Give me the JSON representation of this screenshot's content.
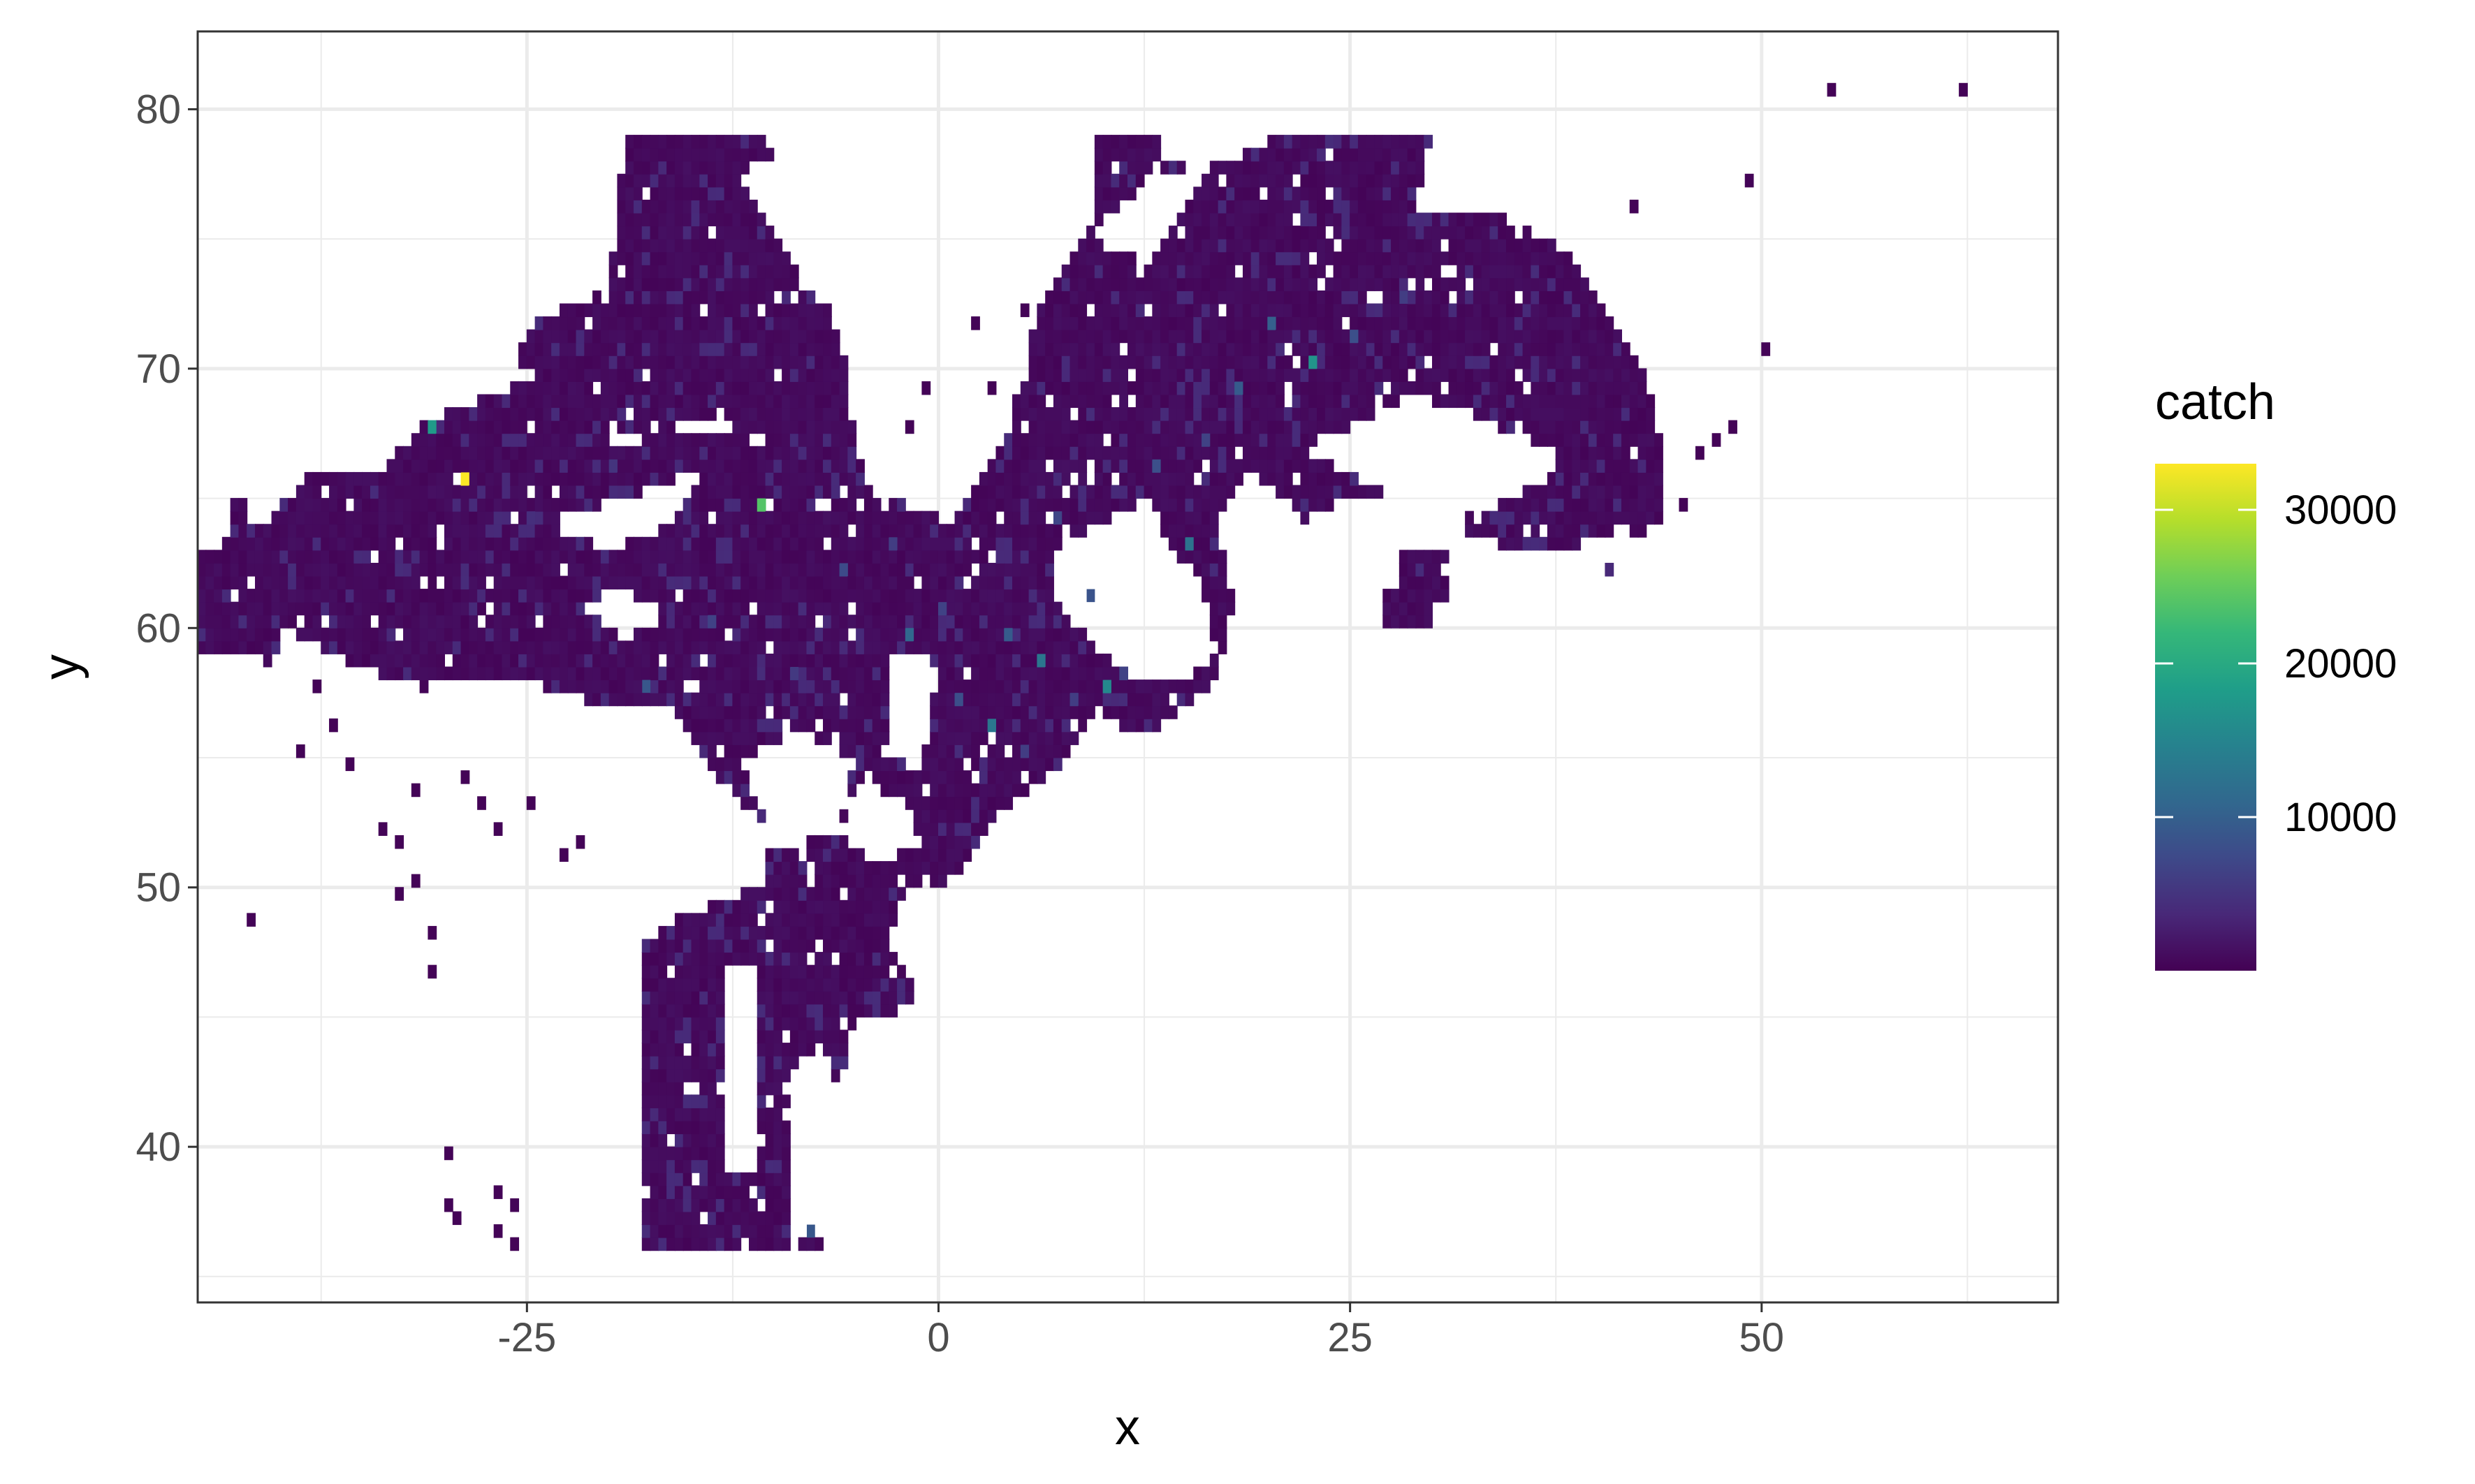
{
  "chart_data": {
    "type": "heatmap",
    "title": "",
    "xlabel": "x",
    "ylabel": "y",
    "xlim": [
      -45,
      68
    ],
    "ylim": [
      34,
      83
    ],
    "x_ticks": [
      -25,
      0,
      25,
      50
    ],
    "x_tick_labels": [
      "-25",
      "0",
      "25",
      "50"
    ],
    "x_minor": [
      -37.5,
      -12.5,
      12.5,
      37.5,
      62.5
    ],
    "y_ticks": [
      40,
      50,
      60,
      70,
      80
    ],
    "y_tick_labels": [
      "40",
      "50",
      "60",
      "70",
      "80"
    ],
    "y_minor": [
      35,
      45,
      55,
      65,
      75
    ],
    "grid": true,
    "cell_size": 0.5,
    "background_value": 300,
    "colorscale": "viridis",
    "colorscale_stops": [
      "#440154",
      "#482878",
      "#3e4989",
      "#31688e",
      "#26828e",
      "#1f9e89",
      "#35b779",
      "#6ece58",
      "#b5de2b",
      "#fde725"
    ],
    "value_range": [
      0,
      33000
    ],
    "region_polygons": [
      [
        [
          -44,
          59
        ],
        [
          -44,
          63
        ],
        [
          -41,
          64
        ],
        [
          -38,
          66
        ],
        [
          -34,
          66
        ],
        [
          -31,
          68
        ],
        [
          -27,
          69
        ],
        [
          -24,
          72
        ],
        [
          -20,
          73
        ],
        [
          -19,
          79
        ],
        [
          -11,
          79
        ],
        [
          -8,
          77
        ],
        [
          -9,
          74
        ],
        [
          -6,
          72
        ],
        [
          -5,
          67
        ],
        [
          -3,
          65
        ],
        [
          1,
          64
        ],
        [
          4,
          67
        ],
        [
          6,
          72
        ],
        [
          9,
          75
        ],
        [
          12,
          78
        ],
        [
          18,
          78
        ],
        [
          21,
          79
        ],
        [
          30,
          79
        ],
        [
          29,
          76
        ],
        [
          34,
          76
        ],
        [
          37,
          75
        ],
        [
          39,
          74
        ],
        [
          41,
          72
        ],
        [
          43,
          70
        ],
        [
          44,
          67
        ],
        [
          44,
          64
        ],
        [
          40,
          63
        ],
        [
          35,
          63
        ],
        [
          31,
          64
        ],
        [
          28,
          65
        ],
        [
          25,
          65
        ],
        [
          22,
          64
        ],
        [
          20,
          62
        ],
        [
          18,
          60
        ],
        [
          17,
          58
        ],
        [
          15,
          57
        ],
        [
          13,
          56
        ],
        [
          11,
          56
        ],
        [
          10,
          57
        ],
        [
          8,
          55
        ],
        [
          6,
          54
        ],
        [
          4,
          53
        ],
        [
          2,
          51
        ],
        [
          0,
          50
        ],
        [
          -2,
          50
        ],
        [
          -3,
          48
        ],
        [
          -1,
          46
        ],
        [
          -3,
          45
        ],
        [
          -5,
          45
        ],
        [
          -6,
          42
        ],
        [
          -6,
          38
        ],
        [
          -5,
          37
        ],
        [
          -6,
          36
        ],
        [
          -18,
          36
        ],
        [
          -18,
          48
        ],
        [
          -15,
          49
        ],
        [
          -11,
          50
        ],
        [
          -10,
          52
        ],
        [
          -13,
          54
        ],
        [
          -16,
          57
        ],
        [
          -20,
          57
        ],
        [
          -25,
          58
        ],
        [
          -30,
          58
        ],
        [
          -34,
          57
        ],
        [
          -38,
          56
        ],
        [
          -40,
          57
        ],
        [
          -41,
          59
        ]
      ]
    ],
    "holes": [
      [
        [
          -24,
          73
        ],
        [
          -29,
          73.5
        ],
        [
          -33,
          72.5
        ],
        [
          -30,
          71
        ],
        [
          -25,
          71.5
        ]
      ],
      [
        [
          -26,
          70.5
        ],
        [
          -32,
          71
        ],
        [
          -34,
          69.5
        ],
        [
          -28,
          69
        ],
        [
          -24,
          69.5
        ]
      ],
      [
        [
          -3,
          79
        ],
        [
          -8,
          79
        ],
        [
          -12,
          77.5
        ],
        [
          -9,
          74
        ],
        [
          -6,
          72
        ],
        [
          -3,
          74
        ]
      ],
      [
        [
          -22,
          67
        ],
        [
          -14,
          67.5
        ],
        [
          -9,
          67
        ],
        [
          -14,
          68
        ]
      ],
      [
        [
          -24,
          64
        ],
        [
          -19,
          65
        ],
        [
          -14,
          66
        ],
        [
          -16,
          64
        ],
        [
          -20,
          63
        ]
      ],
      [
        [
          -22,
          61
        ],
        [
          -19,
          61.5
        ],
        [
          -16,
          60.5
        ],
        [
          -19,
          59.5
        ]
      ],
      [
        [
          -40,
          60
        ],
        [
          -35,
          58.5
        ],
        [
          -30,
          57.5
        ],
        [
          -30,
          56
        ],
        [
          -36,
          55.5
        ],
        [
          -41,
          56
        ]
      ],
      [
        [
          -31,
          56
        ],
        [
          -26,
          55.5
        ],
        [
          -24,
          52
        ],
        [
          -30,
          51.5
        ],
        [
          -33,
          54
        ]
      ],
      [
        [
          -22,
          57
        ],
        [
          -18,
          56.5
        ],
        [
          -17,
          53
        ],
        [
          -21,
          52
        ],
        [
          -24,
          54
        ]
      ],
      [
        [
          -19,
          50.5
        ],
        [
          -16,
          49.5
        ],
        [
          -17,
          48
        ],
        [
          -21,
          48.5
        ]
      ],
      [
        [
          -12,
          55
        ],
        [
          -8,
          56
        ],
        [
          -5,
          55
        ],
        [
          -6,
          52
        ],
        [
          -10,
          51.5
        ]
      ],
      [
        [
          -5,
          54
        ],
        [
          -2,
          53.5
        ],
        [
          -1,
          51.5
        ],
        [
          -4,
          51
        ],
        [
          -6,
          52
        ]
      ],
      [
        [
          -3,
          59
        ],
        [
          -1,
          59
        ],
        [
          0,
          58.5
        ],
        [
          -1,
          54.5
        ],
        [
          -3,
          55
        ]
      ],
      [
        [
          -5,
          36
        ],
        [
          -9,
          36.5
        ],
        [
          -9,
          43
        ],
        [
          -7,
          44
        ],
        [
          -5,
          40
        ]
      ],
      [
        [
          -13,
          47
        ],
        [
          -11,
          47
        ],
        [
          -11,
          39
        ],
        [
          -13,
          39
        ]
      ],
      [
        [
          -3,
          79
        ],
        [
          10,
          79
        ],
        [
          8,
          77
        ],
        [
          5,
          75
        ],
        [
          3,
          73
        ],
        [
          2,
          70
        ],
        [
          -2,
          66
        ],
        [
          -4,
          65
        ],
        [
          -5,
          67
        ],
        [
          -6,
          72
        ]
      ],
      [
        [
          9,
          75
        ],
        [
          13,
          77.5
        ],
        [
          17,
          78
        ],
        [
          15,
          76
        ],
        [
          13,
          74
        ]
      ],
      [
        [
          21,
          65
        ],
        [
          19,
          66
        ],
        [
          17,
          64
        ],
        [
          18,
          61
        ],
        [
          19,
          59
        ],
        [
          21,
          57
        ],
        [
          22,
          55
        ],
        [
          24,
          55
        ],
        [
          26,
          57
        ],
        [
          28,
          59
        ],
        [
          26,
          61
        ],
        [
          24,
          63
        ]
      ],
      [
        [
          7,
          63
        ],
        [
          10,
          64
        ],
        [
          13,
          65
        ],
        [
          14,
          63
        ],
        [
          16,
          62
        ],
        [
          17,
          59
        ],
        [
          15,
          58
        ],
        [
          12,
          58
        ],
        [
          10,
          59
        ],
        [
          7,
          61
        ]
      ],
      [
        [
          18,
          61
        ],
        [
          20,
          59
        ],
        [
          21,
          57
        ],
        [
          21,
          55
        ],
        [
          19,
          56
        ],
        [
          17,
          58
        ]
      ],
      [
        [
          9,
          55
        ],
        [
          10,
          56
        ],
        [
          11,
          55
        ],
        [
          10,
          53
        ],
        [
          8,
          53
        ]
      ],
      [
        [
          22,
          67
        ],
        [
          26,
          68
        ],
        [
          29,
          69
        ],
        [
          33,
          68
        ],
        [
          37,
          67
        ],
        [
          38,
          66
        ],
        [
          35,
          65
        ],
        [
          31,
          64
        ],
        [
          28,
          65
        ],
        [
          25,
          66
        ]
      ],
      [
        [
          38,
          63
        ],
        [
          42,
          64
        ],
        [
          43,
          63
        ],
        [
          40,
          62
        ],
        [
          37,
          62
        ]
      ]
    ],
    "extra_rects": [
      [
        9.5,
        76,
        4,
        3
      ],
      [
        28,
        61,
        3,
        2
      ],
      [
        27,
        60,
        3,
        1.5
      ],
      [
        38,
        62,
        3,
        1
      ],
      [
        -46,
        59,
        2,
        4
      ],
      [
        -43,
        63,
        1,
        2
      ],
      [
        -35,
        64,
        2,
        1
      ],
      [
        -28,
        62,
        3,
        2
      ]
    ],
    "isolated_cells": [
      [
        -42,
        48.5
      ],
      [
        -34,
        52
      ],
      [
        -33,
        51.5
      ],
      [
        -32,
        50
      ],
      [
        -33,
        49.5
      ],
      [
        -31,
        48
      ],
      [
        -31,
        46.5
      ],
      [
        -30,
        39.5
      ],
      [
        -30,
        37.5
      ],
      [
        -29.5,
        37
      ],
      [
        -27,
        38
      ],
      [
        -26,
        37.5
      ],
      [
        -27,
        36.5
      ],
      [
        -26,
        36
      ],
      [
        -32,
        53.5
      ],
      [
        -29,
        54
      ],
      [
        -28,
        53
      ],
      [
        -27,
        52
      ],
      [
        -25,
        53
      ],
      [
        -23,
        51
      ],
      [
        -22,
        51.5
      ],
      [
        -38,
        57.5
      ],
      [
        -39,
        55
      ],
      [
        -37,
        56
      ],
      [
        -36,
        54.5
      ],
      [
        54,
        80.5
      ],
      [
        62,
        80.5
      ],
      [
        49,
        77
      ],
      [
        42,
        76
      ],
      [
        50,
        70.5
      ],
      [
        48,
        67.5
      ],
      [
        46,
        66.5
      ],
      [
        47,
        67
      ],
      [
        45,
        64.5
      ],
      [
        -1,
        69
      ],
      [
        2,
        71.5
      ],
      [
        5,
        72
      ],
      [
        3,
        69
      ],
      [
        -2,
        67.5
      ]
    ],
    "hotspots": [
      {
        "x": -29,
        "y": 65.5,
        "value": 33000
      },
      {
        "x": -11,
        "y": 64.5,
        "value": 24000
      },
      {
        "x": -31,
        "y": 67.5,
        "value": 18000
      },
      {
        "x": 10,
        "y": 57.5,
        "value": 15500
      },
      {
        "x": 22.5,
        "y": 70,
        "value": 17000
      },
      {
        "x": 3,
        "y": 56,
        "value": 13000
      },
      {
        "x": 15,
        "y": 63,
        "value": 12500
      },
      {
        "x": 6,
        "y": 58.5,
        "value": 13000
      },
      {
        "x": -2,
        "y": 59.5,
        "value": 11000
      },
      {
        "x": -8,
        "y": 36.5,
        "value": 9000
      },
      {
        "x": 20,
        "y": 71.5,
        "value": 10000
      },
      {
        "x": 18,
        "y": 69,
        "value": 9500
      },
      {
        "x": -18,
        "y": 57.5,
        "value": 9000
      },
      {
        "x": 4,
        "y": 59.5,
        "value": 9500
      },
      {
        "x": 9,
        "y": 61,
        "value": 8500
      },
      {
        "x": 25,
        "y": 71,
        "value": 8000
      },
      {
        "x": 13,
        "y": 66,
        "value": 8000
      },
      {
        "x": 1,
        "y": 57,
        "value": 8000
      },
      {
        "x": -6,
        "y": 62,
        "value": 7500
      },
      {
        "x": 7,
        "y": 64,
        "value": 7000
      },
      {
        "x": -14,
        "y": 60,
        "value": 6500
      },
      {
        "x": -3,
        "y": 63,
        "value": 6000
      },
      {
        "x": 11,
        "y": 58,
        "value": 6500
      },
      {
        "x": 28,
        "y": 72.5,
        "value": 6000
      },
      {
        "x": 16,
        "y": 67,
        "value": 6500
      },
      {
        "x": 0,
        "y": 60.5,
        "value": 6500
      },
      {
        "x": 5,
        "y": 55,
        "value": 6000
      },
      {
        "x": -9,
        "y": 58,
        "value": 5500
      },
      {
        "x": -20,
        "y": 66,
        "value": 5000
      },
      {
        "x": -25,
        "y": 64,
        "value": 4500
      },
      {
        "x": 8,
        "y": 57,
        "value": 6000
      }
    ],
    "legend": {
      "title": "catch",
      "ticks": [
        10000,
        20000,
        30000
      ],
      "tick_labels": [
        "10000",
        "20000",
        "30000"
      ],
      "position": "right"
    }
  }
}
